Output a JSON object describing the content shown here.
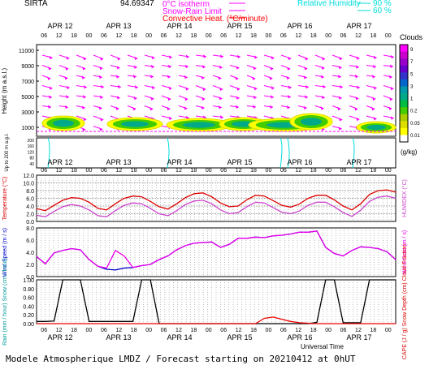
{
  "header": {
    "station": "SIRTA",
    "coords": "94.69347",
    "legend_lines": [
      {
        "label": "0°C isotherm",
        "color": "#ff00ff"
      },
      {
        "label": "Snow-Rain Limit",
        "color": "#ff00ff"
      },
      {
        "label": "Convective Heat. (°C/minute)",
        "color": "#ff0000"
      }
    ],
    "humidity_title": "Relative Humidity",
    "humidity_levels": [
      "90 %",
      "60 %"
    ],
    "humidity_color": "#00dddd"
  },
  "days": [
    "APR 12",
    "APR 13",
    "APR 14",
    "APR 15",
    "APR 16",
    "APR 17"
  ],
  "hours": [
    "06",
    "12",
    "18",
    "00"
  ],
  "clouds_colorbar": {
    "title": "Clouds",
    "unit": "(g/kg)",
    "ticks": [
      "9",
      "7",
      "5",
      "3",
      "1",
      "0.2",
      "0.05",
      "0.01"
    ],
    "colors": [
      "#ff00ff",
      "#cc00cc",
      "#9900cc",
      "#6600cc",
      "#3333cc",
      "#0066cc",
      "#0099aa",
      "#00aa88",
      "#00bb44",
      "#44cc00",
      "#aacc00",
      "#dddd00",
      "#ffff00",
      "#ffffff"
    ]
  },
  "panel1": {
    "ylabel": "Height (m a.s.l.)",
    "yticks": [
      "11000",
      "9000",
      "7000",
      "5000",
      "3000",
      "1000"
    ],
    "low_label": "Up to 200 m a.g.l.",
    "low_ticks": [
      "200",
      "180",
      "160",
      "140",
      "120",
      "100",
      "80",
      "60",
      "40",
      "20"
    ]
  },
  "panel2": {
    "ylabel_left": "Temperature (°C)",
    "ylabel_right": "HUMIDEX (°C)",
    "yticks": [
      "12.0",
      "10.0",
      "8.0",
      "6.0",
      "4.0",
      "2.0",
      "0.0"
    ]
  },
  "panel3": {
    "ylabel_left": "Wind Speed (m / s)",
    "ylabel_right": "Wind Gust (m / s)",
    "yticks": [
      "8.0",
      "6.0",
      "4.0",
      "2.0",
      "0.0"
    ]
  },
  "panel4": {
    "ylabel_left": "Rain (mm / hour) Snow (cm / hour)",
    "ylabel_right": "CAPE (J / g) Snow Depth (cm) Cloud Fraction",
    "yticks": [
      "1.00",
      "0.80",
      "0.60",
      "0.40",
      "0.20",
      "0.00"
    ],
    "xlabel": "Universal Time"
  },
  "footer": "Modele Atmospherique LMDZ / Forecast starting on 20210412 at 0hUT",
  "chart_data": [
    {
      "type": "line",
      "title": "",
      "series": [
        {
          "name": "Temperature",
          "color": "#dd0000",
          "values": [
            3.3,
            2.8,
            4.2,
            5.5,
            6.2,
            6.0,
            5.0,
            3.4,
            3.0,
            4.6,
            6.0,
            6.6,
            6.4,
            5.2,
            3.8,
            3.2,
            4.6,
            6.2,
            7.2,
            7.4,
            6.4,
            4.8,
            3.8,
            4.0,
            5.6,
            6.8,
            6.6,
            5.4,
            4.2,
            3.7,
            4.5,
            6.0,
            6.8,
            6.8,
            5.6,
            4.0,
            3.0,
            4.6,
            7.0,
            8.0,
            8.2,
            7.6
          ]
        },
        {
          "name": "HUMIDEX",
          "color": "#cc44cc",
          "values": [
            1.6,
            1.2,
            2.6,
            3.8,
            4.4,
            4.0,
            3.0,
            1.5,
            1.2,
            2.8,
            4.2,
            4.8,
            4.6,
            3.4,
            2.0,
            1.5,
            2.8,
            4.4,
            5.3,
            5.5,
            4.6,
            3.0,
            2.0,
            2.3,
            3.8,
            5.0,
            4.8,
            3.6,
            2.4,
            2.0,
            2.7,
            4.2,
            5.0,
            5.0,
            3.8,
            2.3,
            1.3,
            2.9,
            5.2,
            6.3,
            6.6,
            6.0
          ]
        }
      ],
      "ylabel": "Temperature (°C)",
      "ylim": [
        0,
        12
      ]
    },
    {
      "type": "line",
      "title": "",
      "series": [
        {
          "name": "Wind Speed",
          "color": "#0000cc",
          "values": [
            3.3,
            2.1,
            3.9,
            4.3,
            4.6,
            4.4,
            2.8,
            1.7,
            1.2,
            1.1,
            1.4,
            1.5,
            1.8,
            2.0,
            2.8,
            3.4,
            4.4,
            5.1,
            5.5,
            5.6,
            5.7,
            4.8,
            5.3,
            6.3,
            6.3,
            6.5,
            6.4,
            6.7,
            6.8,
            7.0,
            7.3,
            7.3,
            7.5,
            4.8,
            3.8,
            3.4,
            4.3,
            4.9,
            4.8,
            4.6,
            4.1,
            2.8
          ]
        },
        {
          "name": "Wind Gust",
          "color": "#ee00ee",
          "values": [
            3.3,
            2.1,
            3.9,
            4.3,
            4.6,
            4.4,
            2.8,
            1.7,
            1.4,
            4.3,
            3.4,
            1.5,
            1.8,
            2.0,
            2.8,
            3.4,
            4.4,
            5.1,
            5.5,
            5.6,
            5.7,
            4.8,
            5.3,
            6.3,
            6.3,
            6.5,
            6.4,
            6.7,
            6.8,
            7.0,
            7.3,
            7.3,
            7.5,
            4.8,
            3.8,
            3.4,
            4.3,
            4.9,
            4.8,
            4.6,
            4.1,
            2.8
          ]
        }
      ],
      "ylabel": "Wind Speed (m / s)",
      "ylim": [
        0,
        8
      ]
    },
    {
      "type": "line",
      "title": "",
      "series": [
        {
          "name": "Cloud Fraction",
          "color": "#000000",
          "values": [
            0.05,
            0.05,
            0.06,
            1.0,
            1.0,
            1.0,
            0.05,
            0.05,
            0.05,
            0.05,
            0.05,
            0.05,
            1.0,
            1.0,
            0.0,
            0.0,
            0.0,
            0.0,
            0.0,
            0.0,
            0.0,
            0.0,
            0.0,
            0.0,
            0.0,
            0.0,
            0.0,
            0.0,
            0.0,
            0.0,
            0.0,
            0.0,
            0.03,
            1.0,
            1.0,
            0.02,
            0.02,
            0.02,
            1.0,
            1.0,
            1.0,
            1.0
          ]
        },
        {
          "name": "CAPE",
          "color": "#ee0000",
          "values": [
            0,
            0,
            0,
            0,
            0,
            0,
            0,
            0,
            0,
            0,
            0,
            0,
            0,
            0,
            0,
            0,
            0,
            0,
            0,
            0,
            0,
            0,
            0,
            0,
            0,
            0,
            0.12,
            0.15,
            0.1,
            0.05,
            0.02,
            0.01,
            0,
            0,
            0,
            0,
            0,
            0,
            0,
            0,
            0,
            0
          ]
        }
      ],
      "ylabel": "Rain (mm / hour) Snow (cm / hour)",
      "ylim": [
        0,
        1
      ]
    }
  ]
}
